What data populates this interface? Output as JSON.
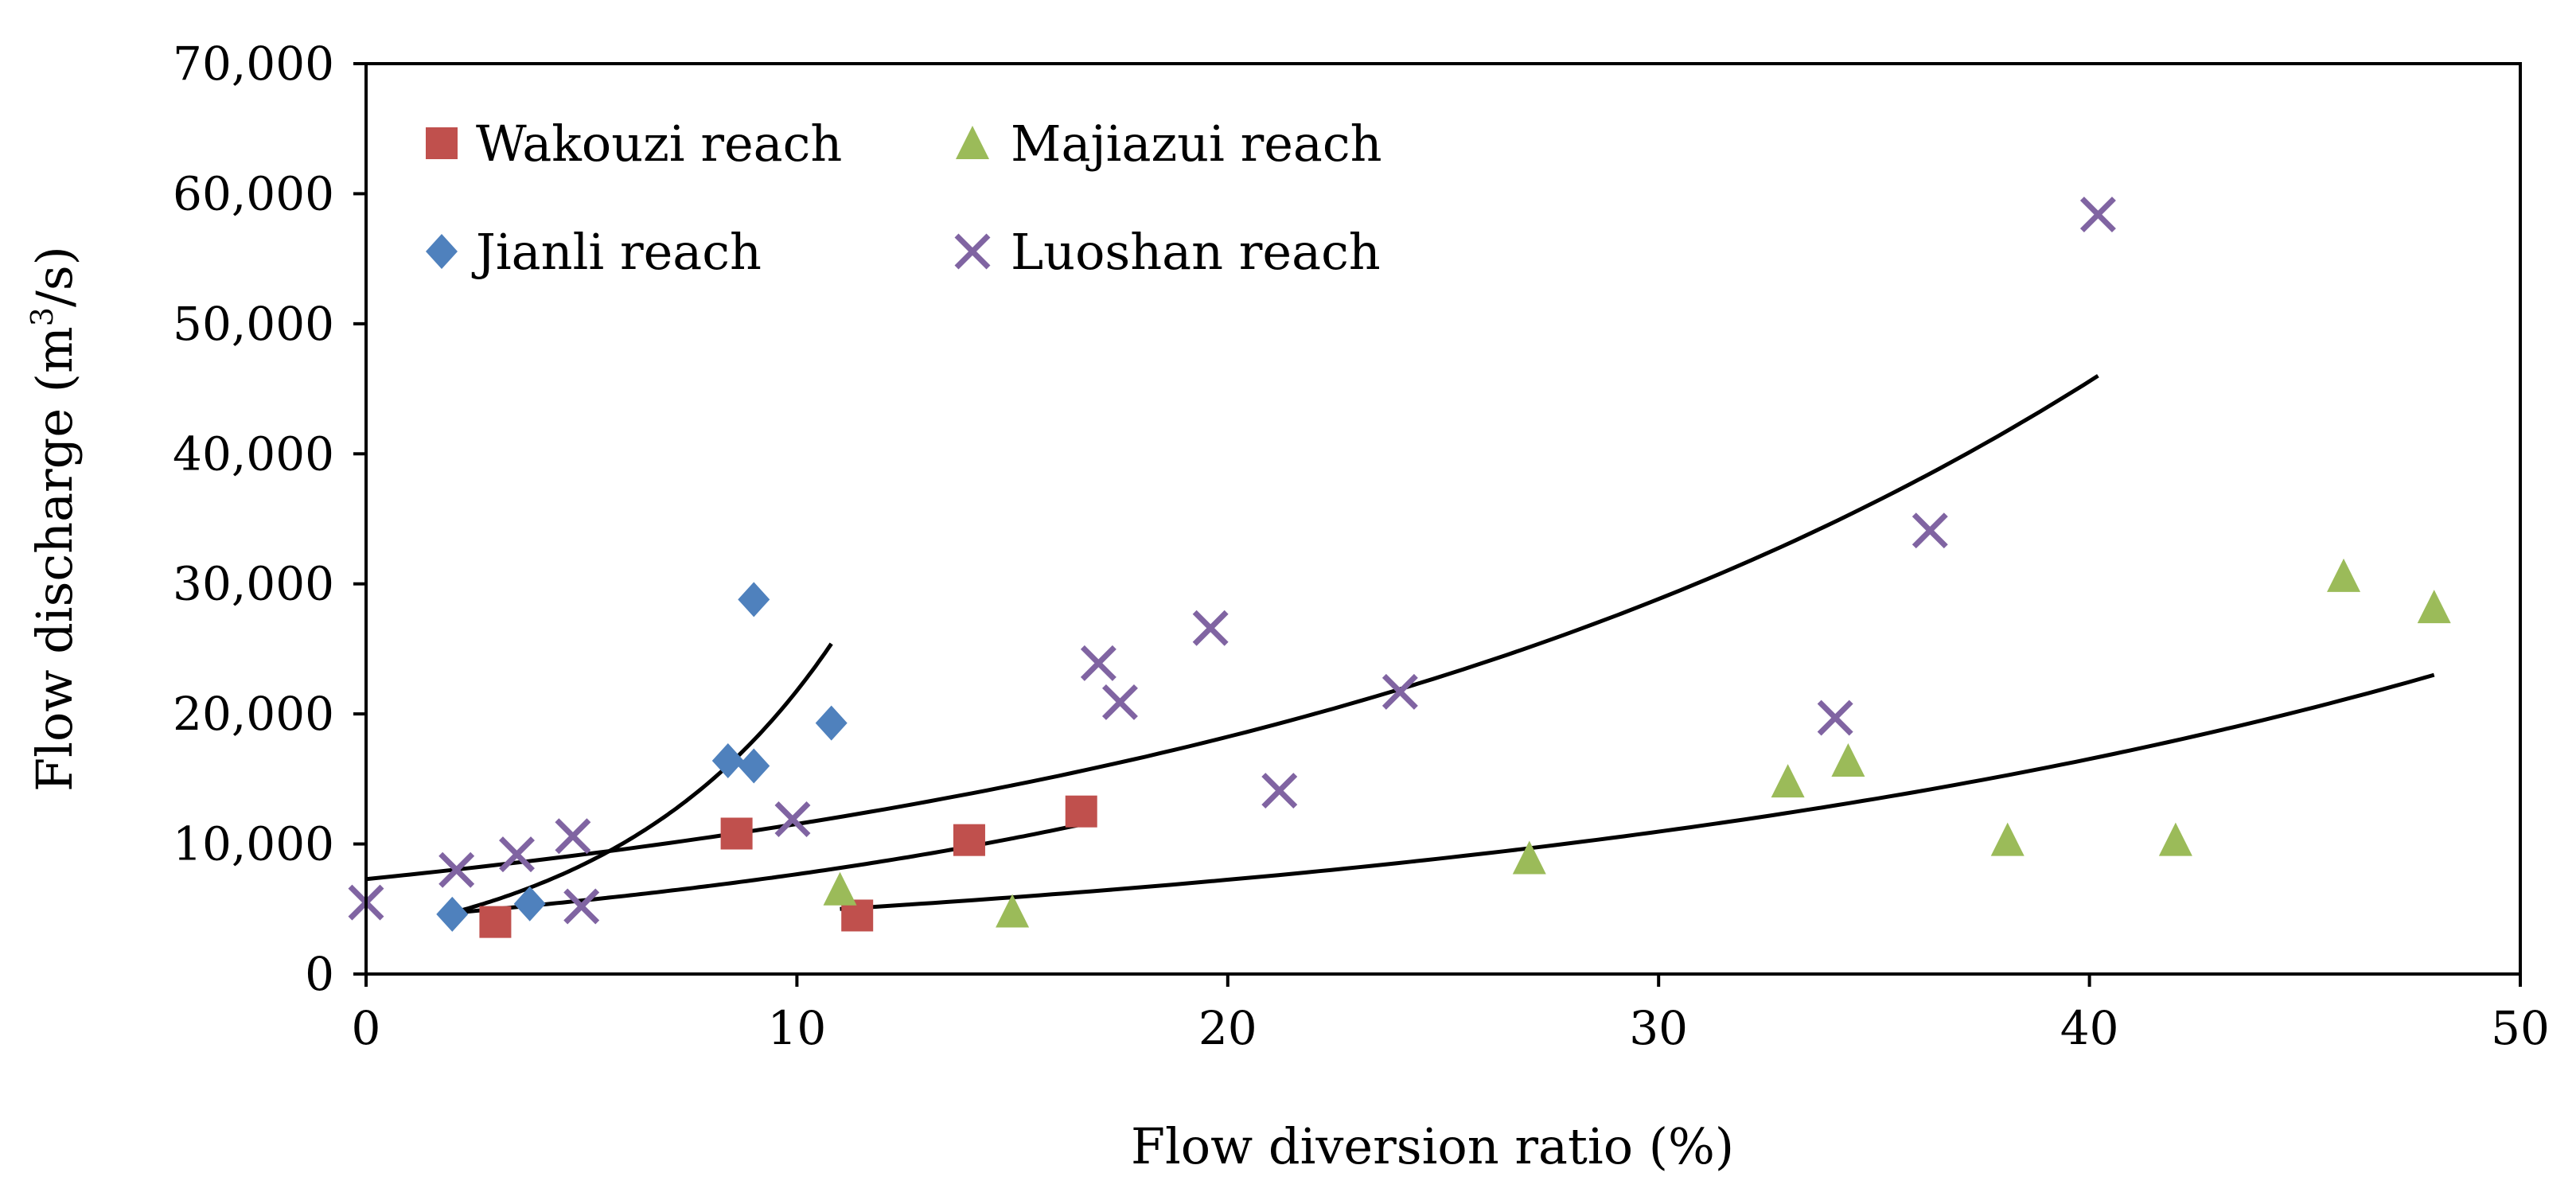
{
  "chart_data": {
    "type": "scatter",
    "title": "",
    "xlabel": "Flow diversion ratio (%)",
    "ylabel_main": "Flow discharge (m",
    "ylabel_sup": "3",
    "ylabel_end": "/s)",
    "xlim": [
      0,
      50
    ],
    "ylim": [
      0,
      70000
    ],
    "xticks": [
      0,
      10,
      20,
      30,
      40,
      50
    ],
    "xtick_labels": [
      "0",
      "10",
      "20",
      "30",
      "40",
      "50"
    ],
    "yticks": [
      0,
      10000,
      20000,
      30000,
      40000,
      50000,
      60000,
      70000
    ],
    "ytick_labels": [
      "0",
      "10,000",
      "20,000",
      "30,000",
      "40,000",
      "50,000",
      "60,000",
      "70,000"
    ],
    "grid": false,
    "legend_position": "top-left",
    "series": [
      {
        "name": "Wakouzi reach",
        "marker": "square",
        "color": "#c0504d",
        "points": [
          [
            3.0,
            4000
          ],
          [
            8.6,
            10800
          ],
          [
            11.4,
            4500
          ],
          [
            14.0,
            10300
          ],
          [
            16.6,
            12500
          ]
        ],
        "trend": {
          "x_start": 2.0,
          "x_end": 16.6,
          "y_start": 4700,
          "y_end": 11500
        }
      },
      {
        "name": "Majiazui reach",
        "marker": "triangle",
        "color": "#9bbb59",
        "points": [
          [
            11.0,
            6500
          ],
          [
            15.0,
            4800
          ],
          [
            27.0,
            8900
          ],
          [
            33.0,
            14800
          ],
          [
            34.4,
            16400
          ],
          [
            38.1,
            10300
          ],
          [
            42.0,
            10300
          ],
          [
            45.9,
            30600
          ],
          [
            48.0,
            28200
          ]
        ],
        "trend": {
          "x_start": 11.0,
          "x_end": 48.0,
          "y_start": 5000,
          "y_end": 23000
        }
      },
      {
        "name": "Jianli reach",
        "marker": "diamond",
        "color": "#4f81bd",
        "points": [
          [
            2.0,
            4600
          ],
          [
            3.8,
            5400
          ],
          [
            8.4,
            16400
          ],
          [
            9.0,
            16000
          ],
          [
            9.0,
            28800
          ],
          [
            10.8,
            19300
          ]
        ],
        "trend": {
          "x_start": 2.0,
          "x_end": 10.8,
          "y_start": 4700,
          "y_end": 25400
        }
      },
      {
        "name": "Luoshan reach",
        "marker": "x",
        "color": "#8064a2",
        "points": [
          [
            0.0,
            5500
          ],
          [
            2.1,
            8000
          ],
          [
            3.5,
            9200
          ],
          [
            4.8,
            10600
          ],
          [
            5.0,
            5200
          ],
          [
            9.9,
            11900
          ],
          [
            17.0,
            23900
          ],
          [
            17.5,
            20900
          ],
          [
            19.6,
            26600
          ],
          [
            21.2,
            14100
          ],
          [
            24.0,
            21700
          ],
          [
            34.1,
            19700
          ],
          [
            36.3,
            34100
          ],
          [
            40.2,
            58400
          ]
        ],
        "trend": {
          "x_start": 0.0,
          "x_end": 40.2,
          "y_start": 7300,
          "y_end": 46000
        }
      }
    ]
  }
}
